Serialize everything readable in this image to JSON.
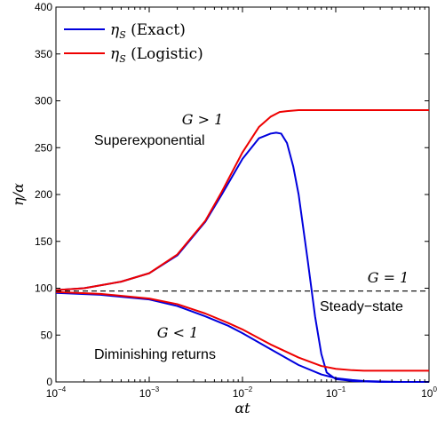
{
  "chart_data": {
    "type": "line",
    "title": "",
    "xlabel": "αt",
    "ylabel": "η/α",
    "xscale": "log",
    "xlim": [
      0.0001,
      1
    ],
    "ylim": [
      0,
      400
    ],
    "x_ticks": [
      {
        "base": "10",
        "exp": "−4"
      },
      {
        "base": "10",
        "exp": "−3"
      },
      {
        "base": "10",
        "exp": "−2"
      },
      {
        "base": "10",
        "exp": "−1"
      },
      {
        "base": "10",
        "exp": "0"
      }
    ],
    "y_ticks": [
      "0",
      "50",
      "100",
      "150",
      "200",
      "250",
      "300",
      "350",
      "400"
    ],
    "grid": false,
    "legend": {
      "position": "top-left",
      "entries": [
        {
          "symbol": "η",
          "sub": "S",
          "text": " (Exact)",
          "color": "#0000dd"
        },
        {
          "symbol": "η",
          "sub": "S",
          "text": " (Logistic)",
          "color": "#ee0000"
        }
      ]
    },
    "series": [
      {
        "name": "ηS (Exact)",
        "color": "#0000dd",
        "style": "solid",
        "x": [
          0.0001,
          0.0002,
          0.0005,
          0.001,
          0.002,
          0.004,
          0.006,
          0.01,
          0.015,
          0.02,
          0.023,
          0.026,
          0.03,
          0.035,
          0.04,
          0.05,
          0.06,
          0.07,
          0.08,
          0.1,
          0.15,
          0.3,
          1
        ],
        "y": [
          98,
          100,
          107,
          116,
          135,
          171,
          200,
          238,
          260,
          265,
          266,
          265,
          255,
          230,
          200,
          130,
          70,
          30,
          10,
          3,
          1,
          0,
          0
        ]
      },
      {
        "name": "ηS (Logistic)",
        "color": "#ee0000",
        "style": "solid",
        "x": [
          0.0001,
          0.0002,
          0.0005,
          0.001,
          0.002,
          0.004,
          0.006,
          0.01,
          0.015,
          0.02,
          0.025,
          0.03,
          0.04,
          0.06,
          0.1,
          0.3,
          1
        ],
        "y": [
          98,
          100,
          107,
          116,
          136,
          172,
          203,
          245,
          272,
          283,
          288,
          289,
          290,
          290,
          290,
          290,
          290
        ]
      },
      {
        "name": "ηS (Exact), G<1",
        "color": "#0000dd",
        "style": "solid",
        "x": [
          0.0001,
          0.0003,
          0.001,
          0.002,
          0.004,
          0.007,
          0.01,
          0.02,
          0.04,
          0.07,
          0.1,
          0.15,
          0.2,
          0.3,
          0.5,
          1
        ],
        "y": [
          95,
          93,
          88,
          81,
          70,
          60,
          52,
          35,
          18,
          8,
          4,
          2,
          1,
          0.5,
          0,
          0
        ]
      },
      {
        "name": "ηS (Logistic), G<1",
        "color": "#ee0000",
        "style": "solid",
        "x": [
          0.0001,
          0.0003,
          0.001,
          0.002,
          0.004,
          0.007,
          0.01,
          0.02,
          0.04,
          0.07,
          0.1,
          0.15,
          0.2,
          0.3,
          0.5,
          1
        ],
        "y": [
          96,
          94,
          89,
          83,
          73,
          63,
          56,
          40,
          26,
          17,
          14,
          12.5,
          12,
          12,
          12,
          12
        ]
      },
      {
        "name": "G = 1",
        "color": "#000000",
        "style": "dashed",
        "x": [
          0.0001,
          1
        ],
        "y": [
          97,
          97
        ]
      }
    ],
    "annotations": [
      {
        "math": "G > 1",
        "text": "Superexponential"
      },
      {
        "math": "G = 1",
        "text": "Steady−state"
      },
      {
        "math": "G < 1",
        "text": "Diminishing returns"
      }
    ]
  }
}
